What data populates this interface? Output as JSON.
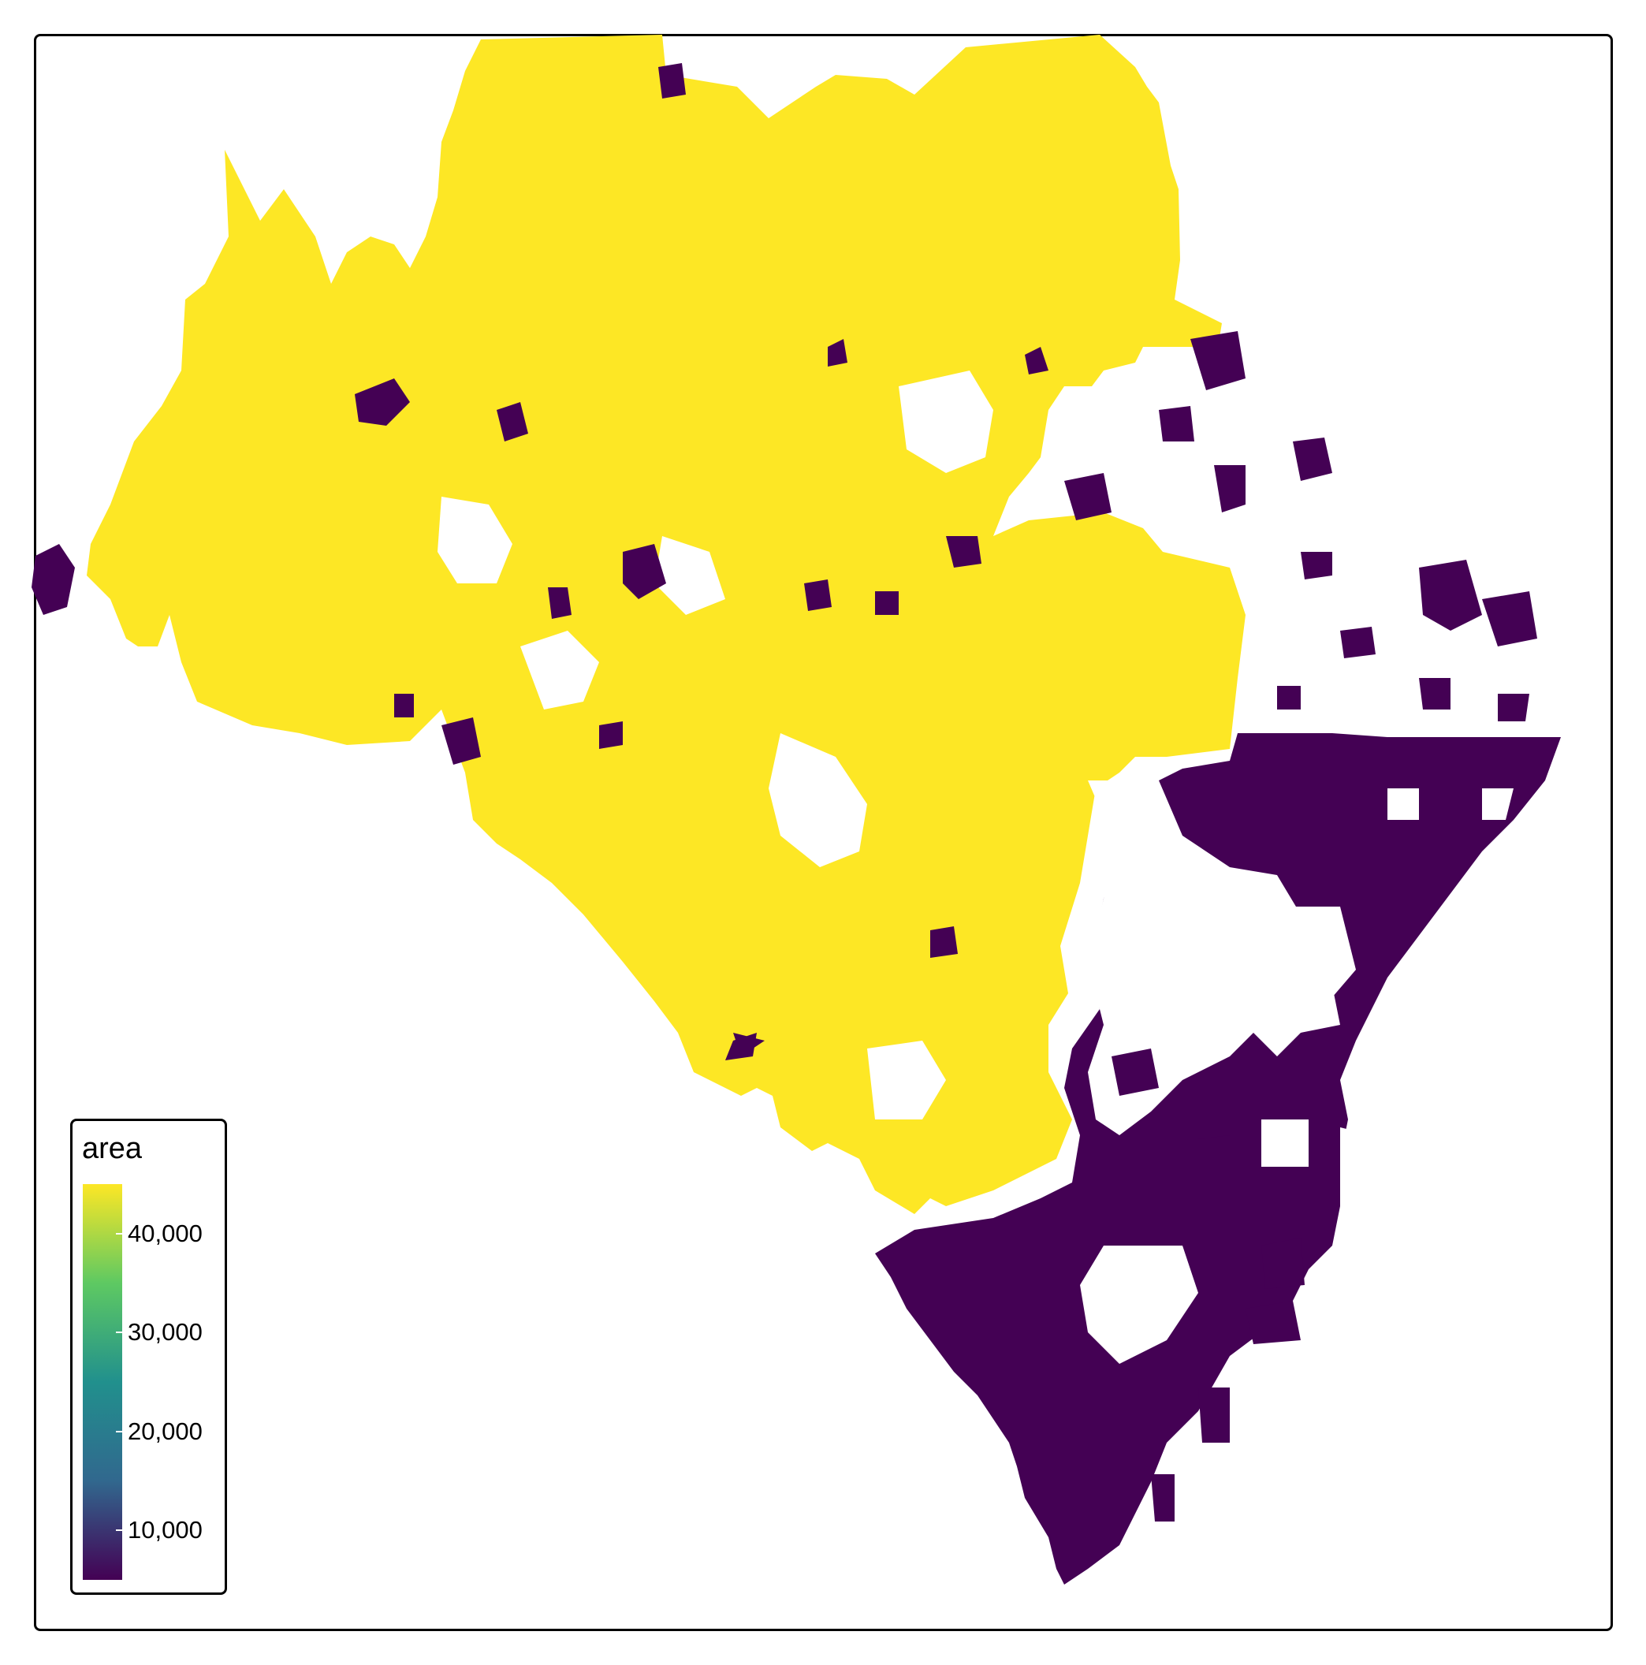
{
  "legend": {
    "title": "area",
    "ticks": [
      {
        "label": "40,000",
        "value": 40000
      },
      {
        "label": "30,000",
        "value": 30000
      },
      {
        "label": "20,000",
        "value": 20000
      },
      {
        "label": "10,000",
        "value": 10000
      }
    ],
    "range": [
      5000,
      45000
    ],
    "gradient": [
      "#440154",
      "#31688e",
      "#21908d",
      "#5ec962",
      "#fde725"
    ]
  },
  "colors": {
    "high": "#fde725",
    "low": "#440154",
    "frame": "#000000",
    "background": "#ffffff"
  }
}
